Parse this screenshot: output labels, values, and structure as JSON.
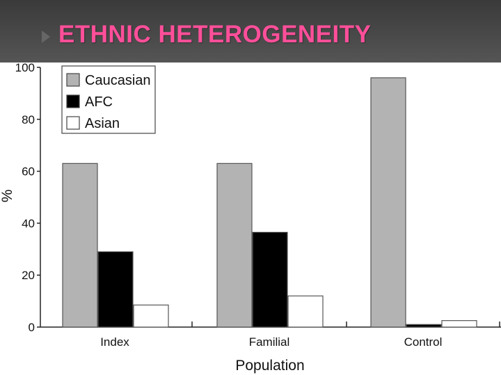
{
  "slide": {
    "title": "ETHNIC HETEROGENEITY"
  },
  "chart_data": {
    "type": "bar",
    "categories": [
      "Index",
      "Familial",
      "Control"
    ],
    "series": [
      {
        "name": "Caucasian",
        "values": [
          63,
          63,
          96
        ],
        "color": "#b3b3b3"
      },
      {
        "name": "AFC",
        "values": [
          29,
          36.5,
          1
        ],
        "color": "#000000"
      },
      {
        "name": "Asian",
        "values": [
          8.5,
          12,
          2.5
        ],
        "color": "#ffffff"
      }
    ],
    "xlabel": "Population",
    "ylabel": "%",
    "ylim": [
      0,
      100
    ],
    "yticks": [
      0,
      20,
      40,
      60,
      80,
      100
    ],
    "legend_position": "top-left",
    "grid": false
  }
}
